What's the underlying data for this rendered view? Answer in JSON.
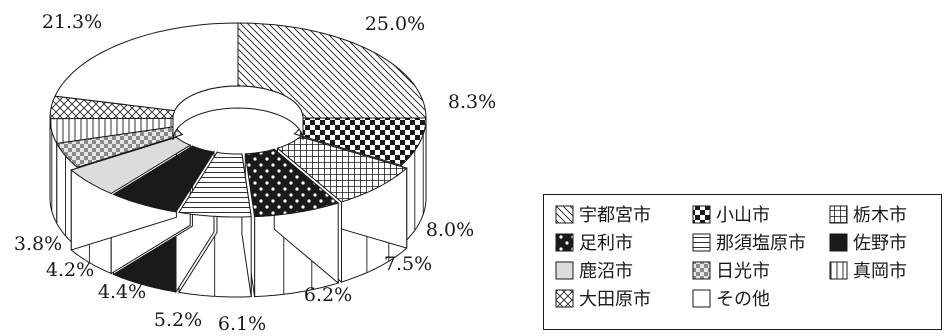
{
  "chart_data": {
    "type": "pie",
    "style": "3d-donut-exploded",
    "title": "",
    "categories": [
      "宇都宮市",
      "小山市",
      "栃木市",
      "足利市",
      "那須塩原市",
      "佐野市",
      "鹿沼市",
      "日光市",
      "真岡市",
      "大田原市",
      "その他"
    ],
    "values": [
      25.0,
      8.3,
      8.0,
      7.5,
      6.2,
      6.1,
      5.2,
      4.4,
      4.2,
      3.8,
      21.3
    ],
    "value_labels": [
      "25.0%",
      "8.3%",
      "8.0%",
      "7.5%",
      "6.2%",
      "6.1%",
      "5.2%",
      "4.4%",
      "4.2%",
      "3.8%",
      "21.3%"
    ],
    "patterns": [
      "diagonal",
      "checker",
      "grid",
      "dots",
      "horizontal",
      "solid",
      "light-gray",
      "small-checker",
      "vertical",
      "crosshatch",
      "blank"
    ],
    "legend_position": "right",
    "legend": [
      {
        "label": "宇都宮市",
        "pattern": "diagonal"
      },
      {
        "label": "小山市",
        "pattern": "checker"
      },
      {
        "label": "栃木市",
        "pattern": "grid"
      },
      {
        "label": "足利市",
        "pattern": "dots"
      },
      {
        "label": "那須塩原市",
        "pattern": "horizontal"
      },
      {
        "label": "佐野市",
        "pattern": "solid"
      },
      {
        "label": "鹿沼市",
        "pattern": "light-gray"
      },
      {
        "label": "日光市",
        "pattern": "small-checker"
      },
      {
        "label": "真岡市",
        "pattern": "vertical"
      },
      {
        "label": "大田原市",
        "pattern": "crosshatch"
      },
      {
        "label": "その他",
        "pattern": "blank"
      }
    ]
  },
  "colors": {
    "ink": "#1a1a1a",
    "gray_fill": "#dcdcdc",
    "background": "#ffffff"
  }
}
